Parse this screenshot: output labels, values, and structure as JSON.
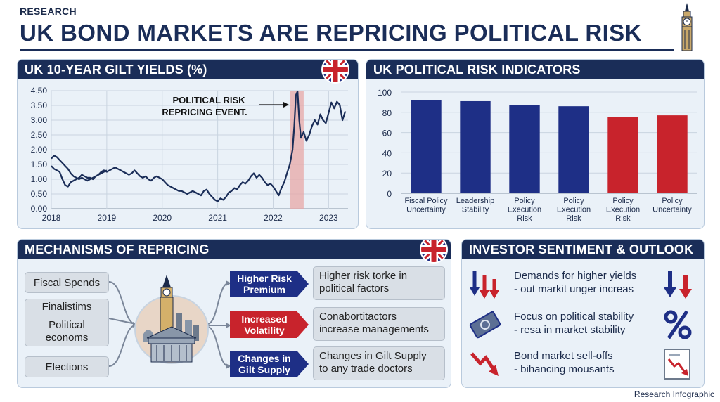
{
  "header": {
    "eyebrow": "RESEARCH",
    "title": "UK BOND MARKETS ARE REPRICING POLITICAL RISK"
  },
  "gilt_panel": {
    "title": "UK 10-YEAR GILT YIELDS (%)",
    "annotation_line1": "POLITICAL RISK",
    "annotation_line2": "REPRICING EVENT."
  },
  "risk_panel": {
    "title": "UK POLITICAL RISK INDICATORS"
  },
  "chart_data": [
    {
      "type": "line",
      "title": "UK 10-YEAR GILT YIELDS (%)",
      "xlabel": "",
      "ylabel": "",
      "x_ticks": [
        "2018",
        "2019",
        "2020",
        "2021",
        "2022",
        "2023"
      ],
      "y_ticks": [
        "0.00",
        "0.50",
        "1.00",
        "1.50",
        "2.00",
        "2.50",
        "3.00",
        "3.50",
        "4.50"
      ],
      "ylim_tick_index": [
        0,
        8
      ],
      "xlim": [
        2018.0,
        2023.35
      ],
      "highlight_band": [
        2022.31,
        2022.55
      ],
      "series": [
        {
          "x": [
            2018.0,
            2018.05,
            2018.1,
            2018.15,
            2018.2,
            2018.25,
            2018.3,
            2018.35,
            2018.4,
            2018.45,
            2018.5,
            2018.55,
            2018.6,
            2018.65,
            2018.7,
            2018.75,
            2018.8,
            2018.85,
            2018.9,
            2018.95,
            2019.0,
            2019.05,
            2019.1,
            2019.15,
            2019.2,
            2019.25,
            2019.3,
            2019.35,
            2019.4,
            2019.45,
            2019.5,
            2019.55,
            2019.6,
            2019.65,
            2019.7,
            2019.75,
            2019.8,
            2019.85,
            2019.9,
            2019.95,
            2020.0,
            2020.05,
            2020.1,
            2020.15,
            2020.2,
            2020.25,
            2020.3,
            2020.35,
            2020.4,
            2020.45,
            2020.5,
            2020.55,
            2020.6,
            2020.65,
            2020.7,
            2020.75,
            2020.8,
            2020.85,
            2020.9,
            2020.95,
            2021.0,
            2021.05,
            2021.1,
            2021.15,
            2021.2,
            2021.25,
            2021.3,
            2021.35,
            2021.4,
            2021.45,
            2021.5,
            2021.55,
            2021.6,
            2021.65,
            2021.7,
            2021.75,
            2021.8,
            2021.85,
            2021.9,
            2021.95,
            2022.0,
            2022.05,
            2022.1,
            2022.15,
            2022.2,
            2022.25,
            2022.3,
            2022.35,
            2022.38,
            2022.41,
            2022.44,
            2022.47,
            2022.5,
            2022.55,
            2022.6,
            2022.65,
            2022.7,
            2022.75,
            2022.8,
            2022.85,
            2022.9,
            2022.95,
            2023.0,
            2023.05,
            2023.1,
            2023.15,
            2023.2,
            2023.25,
            2023.3
          ],
          "y": [
            1.45,
            1.35,
            1.3,
            1.25,
            1.0,
            0.8,
            0.75,
            0.9,
            0.95,
            1.0,
            1.05,
            1.15,
            1.1,
            1.05,
            1.05,
            1.0,
            1.1,
            1.15,
            1.25,
            1.3,
            1.25,
            1.3,
            1.35,
            1.4,
            1.35,
            1.3,
            1.25,
            1.2,
            1.15,
            1.2,
            1.3,
            1.2,
            1.1,
            1.05,
            1.1,
            1.0,
            0.95,
            1.05,
            1.1,
            1.05,
            1.0,
            0.9,
            0.8,
            0.75,
            0.7,
            0.65,
            0.6,
            0.6,
            0.55,
            0.5,
            0.55,
            0.6,
            0.55,
            0.5,
            0.45,
            0.6,
            0.65,
            0.5,
            0.4,
            0.3,
            0.25,
            0.35,
            0.3,
            0.4,
            0.55,
            0.6,
            0.7,
            0.65,
            0.8,
            0.9,
            0.85,
            0.95,
            1.1,
            1.2,
            1.05,
            1.15,
            1.05,
            0.9,
            0.8,
            0.85,
            0.75,
            0.6,
            0.45,
            0.7,
            0.9,
            1.2,
            1.5,
            2.0,
            2.8,
            4.2,
            4.45,
            3.0,
            2.4,
            2.6,
            2.3,
            2.5,
            2.8,
            3.0,
            2.85,
            3.2,
            3.0,
            2.9,
            3.25,
            3.7,
            3.4,
            3.75,
            3.55,
            3.0,
            3.3
          ]
        },
        {
          "x": [
            2018.0,
            2018.05,
            2018.1,
            2018.15,
            2018.2,
            2018.25,
            2018.3,
            2018.35,
            2018.4,
            2018.45,
            2018.5,
            2018.55,
            2018.6,
            2018.65,
            2018.7,
            2018.75,
            2018.8,
            2018.85,
            2018.9,
            2018.95,
            2019.0
          ],
          "y": [
            1.7,
            1.8,
            1.75,
            1.65,
            1.55,
            1.45,
            1.35,
            1.2,
            1.1,
            1.05,
            1.0,
            1.05,
            1.0,
            0.95,
            1.0,
            1.05,
            1.1,
            1.15,
            1.2,
            1.25,
            1.3
          ]
        }
      ]
    },
    {
      "type": "bar",
      "title": "UK POLITICAL RISK INDICATORS",
      "categories": [
        "Fiscal Policy\nUncertainty",
        "Leadership\nStability",
        "Policy\nExecution\nRisk",
        "Policy\nExecution\nRisk",
        "Policy\nExecution\nRisk",
        "Policy\nUncertainty"
      ],
      "values": [
        92,
        91,
        87,
        86,
        75,
        77
      ],
      "bar_colors": [
        "#1e2f86",
        "#1e2f86",
        "#1e2f86",
        "#1e2f86",
        "#c8232c",
        "#c8232c"
      ],
      "ylim": [
        0,
        100
      ],
      "y_ticks": [
        0,
        20,
        40,
        60,
        80,
        100
      ]
    }
  ],
  "mechanisms": {
    "title": "MECHANISMS OF REPRICING",
    "sources": [
      "Fiscal Spends",
      "Finalistims",
      "Political\neconoms",
      "Elections"
    ],
    "channels": [
      {
        "label": "Higher Risk\nPremium",
        "color": "#1e2f86",
        "desc": "Higher risk torke in\npolitical factors"
      },
      {
        "label": "Increased\nVolatility",
        "color": "#c8232c",
        "desc": "Conabortitactors\nincrease managements"
      },
      {
        "label": "Changes in\nGilt Supply",
        "color": "#1e2f86",
        "desc": "Changes in Gilt Supply\nto any trade doctors"
      }
    ]
  },
  "sentiment": {
    "title": "INVESTOR SENTIMENT & OUTLOOK",
    "items": [
      {
        "line1": "Demands for higher yields",
        "line2": "- out markit unger increas",
        "icon_left": "down-arrows-icon",
        "icon_right": "down-up-arrows-icon"
      },
      {
        "line1": "Focus on political stability",
        "line2": "- resa in market stability",
        "icon_left": "banknote-icon",
        "icon_right": "percent-icon"
      },
      {
        "line1": "Bond market sell-offs",
        "line2": "- bihancing mousants",
        "icon_left": "zigzag-down-arrow-icon",
        "icon_right": "chart-decline-icon"
      }
    ]
  },
  "footer": {
    "text": "Research Infographic"
  },
  "colors": {
    "navy": "#1a2d58",
    "bar_navy": "#1e2f86",
    "red": "#c8232c",
    "panel_bg": "#eaf1f8"
  }
}
